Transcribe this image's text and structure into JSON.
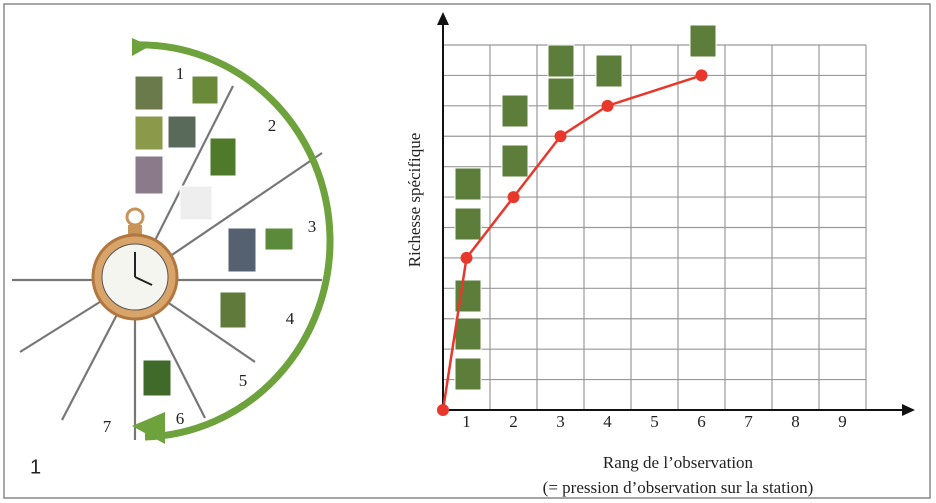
{
  "panel_label": "1",
  "diagram": {
    "sector_labels": [
      "1",
      "2",
      "3",
      "4",
      "5",
      "6",
      "7"
    ]
  },
  "chart_data": {
    "type": "line",
    "ylabel": "Richesse spécifique",
    "xlabel": [
      "Rang de l’observation",
      "(= pression d’observation sur la station)"
    ],
    "x": [
      0.5,
      1,
      2,
      3,
      4,
      6
    ],
    "series": [
      {
        "color": "#e8382b",
        "values": [
          0,
          5,
          7,
          9,
          10,
          11
        ]
      }
    ],
    "xlim": [
      0.5,
      9.5
    ],
    "ylim": [
      0,
      12
    ],
    "xticks": [
      1,
      2,
      3,
      4,
      5,
      6,
      7,
      8,
      9
    ],
    "xgrid": [
      1.5,
      2.5,
      3.5,
      4.5,
      5.5,
      6.5,
      7.5,
      8.5,
      9.5
    ],
    "ygrid": [
      1,
      2,
      3,
      4,
      5,
      6,
      7,
      8,
      9,
      10,
      11,
      12
    ],
    "grid": true
  }
}
